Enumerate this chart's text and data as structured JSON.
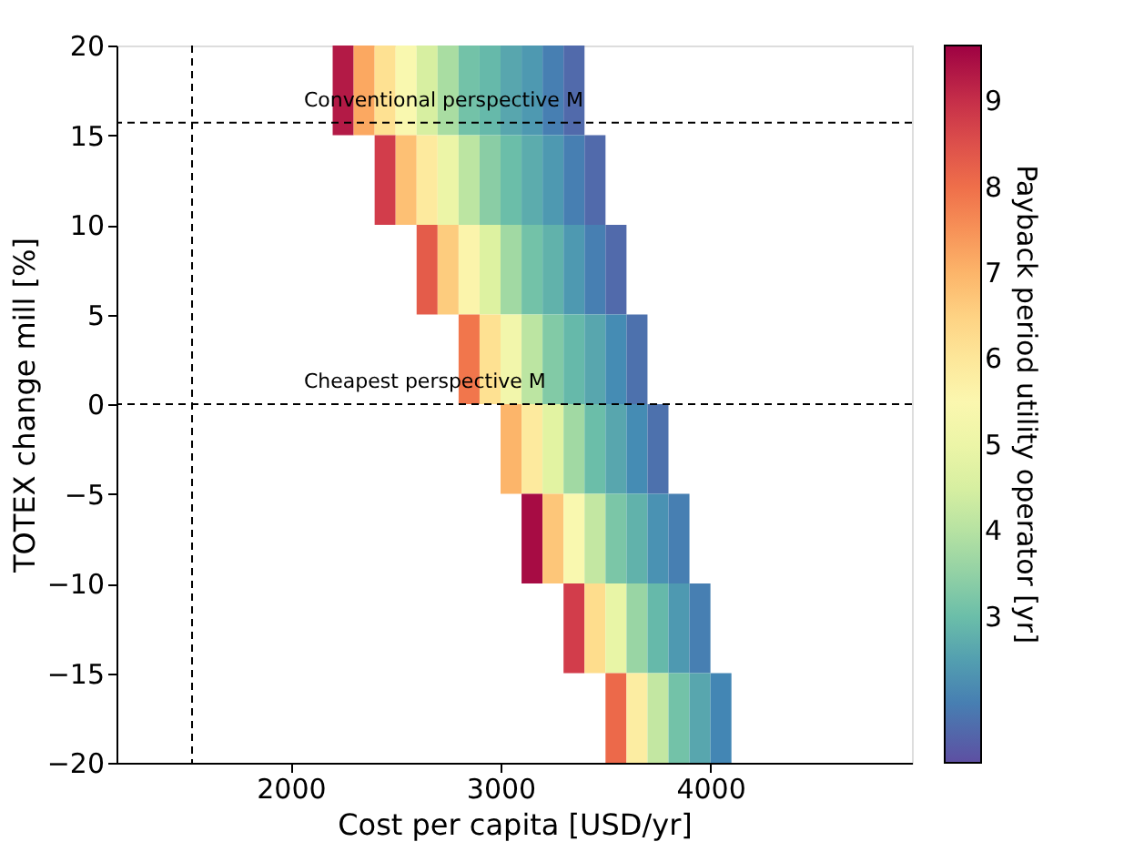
{
  "chart_data": {
    "type": "heatmap",
    "xlabel": "Cost per capita [USD/yr]",
    "ylabel": "TOTEX change mill [%]",
    "clabel": "Payback period utility operator [yr]",
    "x": [
      2150,
      2250,
      2350,
      2450,
      2550,
      2650,
      2750,
      2850,
      2950,
      3050,
      3150,
      3250,
      3350,
      3450,
      3550,
      3650,
      3750,
      3850,
      3950,
      4050,
      4150
    ],
    "y": [
      17.5,
      12.5,
      7.5,
      2.5,
      -2.5,
      -7.5,
      -12.5,
      -17.5
    ],
    "cells": [
      [
        null,
        9.3,
        7.2,
        6.2,
        5.4,
        4.5,
        3.8,
        3.1,
        2.9,
        2.6,
        2.4,
        2.0,
        1.7,
        null,
        null,
        null,
        null,
        null,
        null,
        null,
        null
      ],
      [
        null,
        null,
        null,
        8.8,
        6.8,
        5.9,
        5.0,
        4.1,
        3.4,
        3.0,
        2.7,
        2.4,
        2.0,
        1.7,
        null,
        null,
        null,
        null,
        null,
        null,
        null
      ],
      [
        null,
        null,
        null,
        null,
        null,
        8.3,
        6.6,
        5.6,
        4.6,
        3.7,
        3.1,
        2.8,
        2.4,
        2.0,
        1.7,
        null,
        null,
        null,
        null,
        null,
        null
      ],
      [
        null,
        null,
        null,
        null,
        null,
        null,
        null,
        7.9,
        6.2,
        5.2,
        4.1,
        3.3,
        2.9,
        2.6,
        2.2,
        1.8,
        null,
        null,
        null,
        null,
        null
      ],
      [
        null,
        null,
        null,
        null,
        null,
        null,
        null,
        null,
        null,
        7.0,
        5.9,
        4.7,
        3.7,
        3.0,
        2.6,
        2.2,
        1.8,
        null,
        null,
        null,
        null
      ],
      [
        null,
        null,
        null,
        null,
        null,
        null,
        null,
        null,
        null,
        null,
        9.5,
        6.7,
        5.4,
        4.2,
        3.2,
        2.8,
        2.3,
        2.0,
        null,
        null,
        null
      ],
      [
        null,
        null,
        null,
        null,
        null,
        null,
        null,
        null,
        null,
        null,
        null,
        null,
        8.8,
        6.3,
        4.9,
        3.6,
        2.9,
        2.4,
        2.0,
        null,
        null
      ],
      [
        null,
        null,
        null,
        null,
        null,
        null,
        null,
        null,
        null,
        null,
        null,
        null,
        null,
        null,
        8.1,
        5.8,
        4.2,
        3.1,
        2.6,
        2.1,
        null
      ]
    ],
    "xlim": [
      1170,
      4960
    ],
    "xticks": [
      2000,
      3000,
      4000
    ],
    "ylim": [
      -20,
      20
    ],
    "yticks": [
      -20,
      -15,
      -10,
      -5,
      0,
      5,
      10,
      15,
      20
    ],
    "clim": [
      1.3,
      9.65
    ],
    "cticks": [
      3,
      4,
      5,
      6,
      7,
      8,
      9
    ],
    "ref_lines": [
      {
        "axis": "x",
        "value": 1530
      },
      {
        "axis": "y",
        "value": 15.7,
        "label": "Conventional  perspective M",
        "line_style": "dashed"
      },
      {
        "axis": "y",
        "value": 0,
        "label": "Cheapest  perspective M",
        "line_style": "dashed"
      }
    ],
    "grid": false
  }
}
